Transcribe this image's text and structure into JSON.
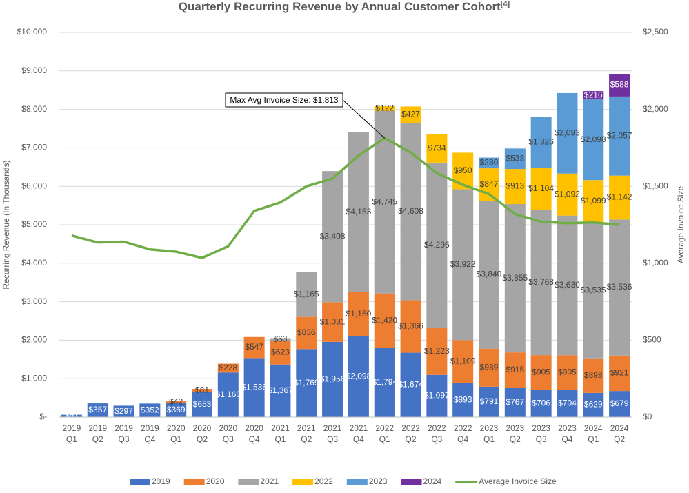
{
  "chart_data": {
    "type": "stacked-bar-line",
    "title": "Quarterly Recurring Revenue by Annual Customer Cohort",
    "title_superscript": "[4]",
    "y_label": "Recurring Revenue (In Thousands)",
    "y2_label": "Average Invoice Size",
    "annotation": "Max Avg Invoice Size: $1,813",
    "categories": [
      [
        "2019",
        "Q1"
      ],
      [
        "2019",
        "Q2"
      ],
      [
        "2019",
        "Q3"
      ],
      [
        "2019",
        "Q4"
      ],
      [
        "2020",
        "Q1"
      ],
      [
        "2020",
        "Q2"
      ],
      [
        "2020",
        "Q3"
      ],
      [
        "2020",
        "Q4"
      ],
      [
        "2021",
        "Q1"
      ],
      [
        "2021",
        "Q2"
      ],
      [
        "2021",
        "Q3"
      ],
      [
        "2021",
        "Q4"
      ],
      [
        "2022",
        "Q1"
      ],
      [
        "2022",
        "Q2"
      ],
      [
        "2022",
        "Q3"
      ],
      [
        "2022",
        "Q4"
      ],
      [
        "2023",
        "Q1"
      ],
      [
        "2023",
        "Q2"
      ],
      [
        "2023",
        "Q3"
      ],
      [
        "2023",
        "Q4"
      ],
      [
        "2024",
        "Q1"
      ],
      [
        "2024",
        "Q2"
      ]
    ],
    "ylim": [
      0,
      10000
    ],
    "yticks": [
      {
        "value": 0,
        "label": "$-"
      },
      {
        "value": 1000,
        "label": "$1,000"
      },
      {
        "value": 2000,
        "label": "$2,000"
      },
      {
        "value": 3000,
        "label": "$3,000"
      },
      {
        "value": 4000,
        "label": "$4,000"
      },
      {
        "value": 5000,
        "label": "$5,000"
      },
      {
        "value": 6000,
        "label": "$6,000"
      },
      {
        "value": 7000,
        "label": "$7,000"
      },
      {
        "value": 8000,
        "label": "$8,000"
      },
      {
        "value": 9000,
        "label": "$9,000"
      },
      {
        "value": 10000,
        "label": "$10,000"
      }
    ],
    "y2lim": [
      0,
      2500
    ],
    "y2ticks": [
      {
        "value": 0,
        "label": "$0"
      },
      {
        "value": 500,
        "label": "$500"
      },
      {
        "value": 1000,
        "label": "$1,000"
      },
      {
        "value": 1500,
        "label": "$1,500"
      },
      {
        "value": 2000,
        "label": "$2,000"
      },
      {
        "value": 2500,
        "label": "$2,500"
      }
    ],
    "grid": true,
    "legend": "bottom",
    "series": [
      {
        "name": "2019",
        "color": "#4472c4",
        "label_color": "#ffffff",
        "values": [
          61,
          357,
          297,
          352,
          369,
          653,
          1160,
          1536,
          1367,
          1769,
          1956,
          2098,
          1794,
          1674,
          1097,
          893,
          791,
          767,
          706,
          704,
          629,
          679
        ],
        "value_labels": [
          "$61",
          "$357",
          "$297",
          "$352",
          "$369",
          "$653",
          "$1,160",
          "$1,536",
          "$1,367",
          "$1,769",
          "$1,956",
          "$2,098",
          "$1,794",
          "$1,674",
          "$1,097",
          "$893",
          "$791",
          "$767",
          "$706",
          "$704",
          "$629",
          "$679"
        ]
      },
      {
        "name": "2020",
        "color": "#ed7d31",
        "label_color": "#404040",
        "values": [
          null,
          null,
          null,
          null,
          42,
          81,
          228,
          547,
          623,
          836,
          1031,
          1150,
          1420,
          1366,
          1223,
          1109,
          989,
          915,
          905,
          905,
          898,
          921
        ],
        "value_labels": [
          null,
          null,
          null,
          null,
          "$42",
          "$81",
          "$228",
          "$547",
          "$623",
          "$836",
          "$1,031",
          "$1,150",
          "$1,420",
          "$1,366",
          "$1,223",
          "$1,109",
          "$989",
          "$915",
          "$905",
          "$905",
          "$898",
          "$921"
        ]
      },
      {
        "name": "2021",
        "color": "#a5a5a5",
        "label_color": "#404040",
        "values": [
          null,
          null,
          null,
          null,
          null,
          null,
          null,
          null,
          63,
          1165,
          3408,
          4153,
          4745,
          4608,
          4296,
          3922,
          3840,
          3855,
          3768,
          3630,
          3535,
          3536
        ],
        "value_labels": [
          null,
          null,
          null,
          null,
          null,
          null,
          null,
          null,
          "$63",
          "$1,165",
          "$3,408",
          "$4,153",
          "$4,745",
          "$4,608",
          "$4,296",
          "$3,922",
          "$3,840",
          "$3,855",
          "$3,768",
          "$3,630",
          "$3,535",
          "$3,536"
        ]
      },
      {
        "name": "2022",
        "color": "#ffc000",
        "label_color": "#404040",
        "values": [
          null,
          null,
          null,
          null,
          null,
          null,
          null,
          null,
          null,
          null,
          null,
          null,
          122,
          427,
          734,
          950,
          847,
          913,
          1104,
          1092,
          1099,
          1142
        ],
        "value_labels": [
          null,
          null,
          null,
          null,
          null,
          null,
          null,
          null,
          null,
          null,
          null,
          null,
          "$122",
          "$427",
          "$734",
          "$950",
          "$847",
          "$913",
          "$1,104",
          "$1,092",
          "$1,099",
          "$1,142"
        ]
      },
      {
        "name": "2023",
        "color": "#5b9bd5",
        "label_color": "#404040",
        "values": [
          null,
          null,
          null,
          null,
          null,
          null,
          null,
          null,
          null,
          null,
          null,
          null,
          null,
          null,
          null,
          null,
          280,
          533,
          1326,
          2093,
          2098,
          2057
        ],
        "value_labels": [
          null,
          null,
          null,
          null,
          null,
          null,
          null,
          null,
          null,
          null,
          null,
          null,
          null,
          null,
          null,
          null,
          "$280",
          "$533",
          "$1,326",
          "$2,093",
          "$2,098",
          "$2,057"
        ]
      },
      {
        "name": "2024",
        "color": "#7030a0",
        "label_color": "#ffffff",
        "values": [
          null,
          null,
          null,
          null,
          null,
          null,
          null,
          null,
          null,
          null,
          null,
          null,
          null,
          null,
          null,
          null,
          null,
          null,
          null,
          null,
          216,
          588
        ],
        "value_labels": [
          null,
          null,
          null,
          null,
          null,
          null,
          null,
          null,
          null,
          null,
          null,
          null,
          null,
          null,
          null,
          null,
          null,
          null,
          null,
          null,
          "$216",
          "$588"
        ]
      },
      {
        "name": "Average Invoice Size",
        "type": "line",
        "axis": "y2",
        "color": "#70ad47",
        "values": [
          1180,
          1135,
          1140,
          1090,
          1075,
          1035,
          1110,
          1340,
          1395,
          1500,
          1550,
          1700,
          1813,
          1720,
          1585,
          1510,
          1450,
          1320,
          1270,
          1260,
          1265,
          1250
        ]
      }
    ]
  }
}
